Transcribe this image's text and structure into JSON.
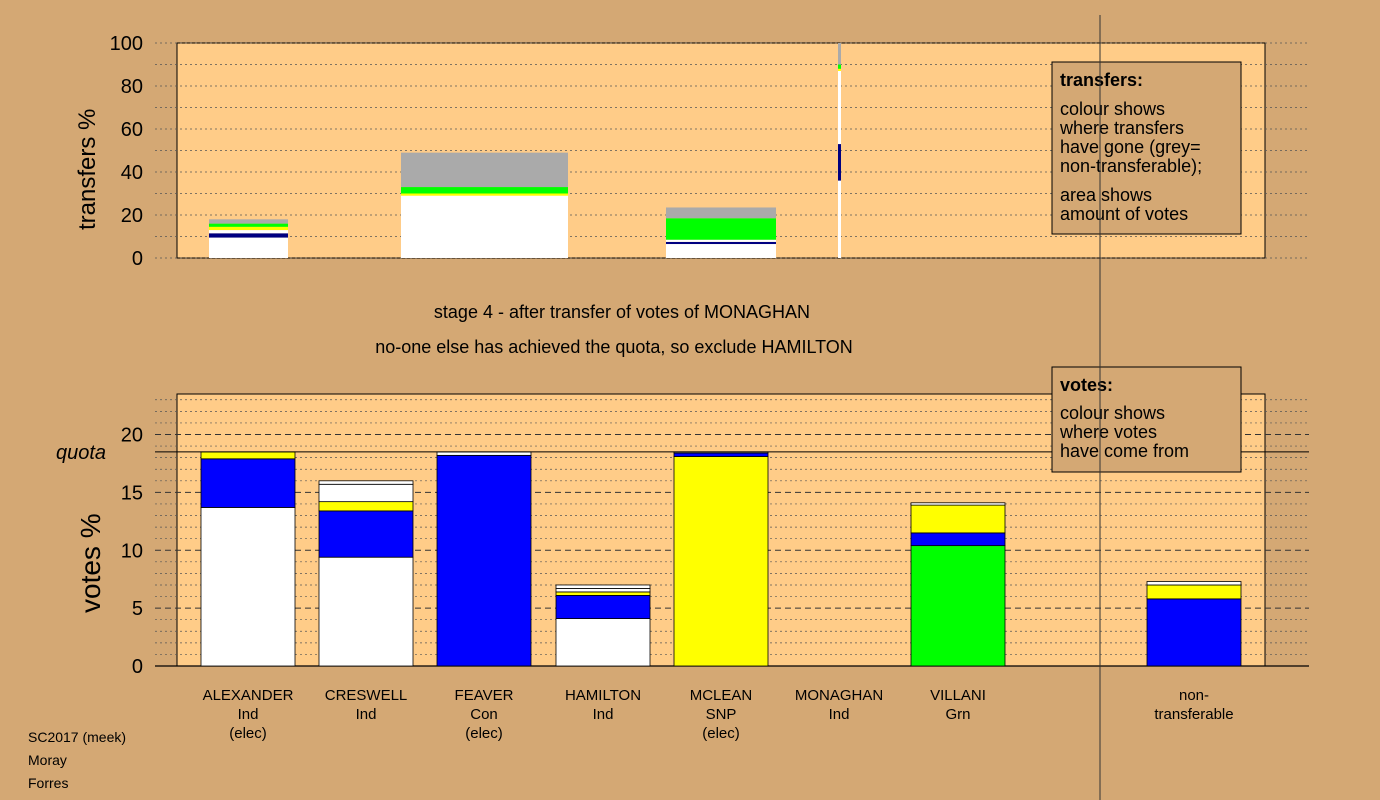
{
  "colors": {
    "background": "#d4a874",
    "plot_bg": "#ffcc88",
    "white": "#ffffff",
    "yellow": "#ffff00",
    "blue": "#0000ff",
    "green": "#00ff00",
    "grey": "#aaaaaa",
    "navy": "#000080"
  },
  "chart_data": [
    {
      "type": "bar",
      "name": "transfers",
      "ylabel": "transfers %",
      "ylim": [
        0,
        100
      ],
      "yticks": [
        0,
        20,
        40,
        60,
        80,
        100
      ],
      "stacked": true,
      "note": "stacked transfer shares per candidate; thin column at MONAGHAN shows 100% of transferred votes",
      "candidates": [
        "ALEXANDER",
        "CRESWELL",
        "FEAVER",
        "MONAGHAN"
      ],
      "stacks": [
        {
          "candidate": "ALEXANDER",
          "segments": [
            {
              "color": "white",
              "value": 9.5
            },
            {
              "color": "navy",
              "value": 2
            },
            {
              "color": "white",
              "value": 1.5
            },
            {
              "color": "yellow",
              "value": 1.5
            },
            {
              "color": "green",
              "value": 1.5
            },
            {
              "color": "grey",
              "value": 2
            }
          ]
        },
        {
          "candidate": "CRESWELL",
          "segments": [
            {
              "color": "white",
              "value": 29
            },
            {
              "color": "yellow",
              "value": 1
            },
            {
              "color": "green",
              "value": 3
            },
            {
              "color": "grey",
              "value": 16
            }
          ]
        },
        {
          "candidate": "FEAVER",
          "segments": [
            {
              "color": "white",
              "value": 6.5
            },
            {
              "color": "navy",
              "value": 1
            },
            {
              "color": "white",
              "value": 1
            },
            {
              "color": "green",
              "value": 10
            },
            {
              "color": "grey",
              "value": 5
            }
          ]
        },
        {
          "candidate": "MONAGHAN",
          "thin": true,
          "segments": [
            {
              "color": "white",
              "value": 36
            },
            {
              "color": "navy",
              "value": 17
            },
            {
              "color": "white",
              "value": 34
            },
            {
              "color": "yellow",
              "value": 1
            },
            {
              "color": "green",
              "value": 2
            },
            {
              "color": "grey",
              "value": 10
            }
          ]
        }
      ]
    },
    {
      "type": "bar",
      "name": "votes",
      "ylabel": "votes %",
      "ylim": [
        0,
        23.5
      ],
      "yticks": [
        0,
        5,
        10,
        15,
        20
      ],
      "quota": 18.5,
      "quota_label": "quota",
      "stacked": true,
      "categories": [
        {
          "lines": [
            "ALEXANDER",
            "Ind",
            "(elec)"
          ]
        },
        {
          "lines": [
            "CRESWELL",
            "Ind"
          ]
        },
        {
          "lines": [
            "FEAVER",
            "Con",
            "(elec)"
          ]
        },
        {
          "lines": [
            "HAMILTON",
            "Ind"
          ]
        },
        {
          "lines": [
            "MCLEAN",
            "SNP",
            "(elec)"
          ]
        },
        {
          "lines": [
            "MONAGHAN",
            "Ind"
          ]
        },
        {
          "lines": [
            "VILLANI",
            "Grn"
          ]
        },
        {
          "lines": [
            "non-",
            "transferable"
          ]
        }
      ],
      "stacks": [
        {
          "candidate": "ALEXANDER",
          "segments": [
            {
              "color": "white",
              "value": 13.7
            },
            {
              "color": "blue",
              "value": 4.2
            },
            {
              "color": "yellow",
              "value": 0.6
            }
          ]
        },
        {
          "candidate": "CRESWELL",
          "segments": [
            {
              "color": "white",
              "value": 9.4
            },
            {
              "color": "blue",
              "value": 4.0
            },
            {
              "color": "yellow",
              "value": 0.8
            },
            {
              "color": "white",
              "value": 1.5
            },
            {
              "color": "white",
              "value": 0.3
            }
          ]
        },
        {
          "candidate": "FEAVER",
          "segments": [
            {
              "color": "blue",
              "value": 18.2
            },
            {
              "color": "white",
              "value": 0.3
            }
          ]
        },
        {
          "candidate": "HAMILTON",
          "segments": [
            {
              "color": "white",
              "value": 4.1
            },
            {
              "color": "blue",
              "value": 2.0
            },
            {
              "color": "yellow",
              "value": 0.3
            },
            {
              "color": "white",
              "value": 0.3
            },
            {
              "color": "white",
              "value": 0.3
            }
          ]
        },
        {
          "candidate": "MCLEAN",
          "segments": [
            {
              "color": "yellow",
              "value": 18.1
            },
            {
              "color": "blue",
              "value": 0.3
            },
            {
              "color": "white",
              "value": 0.1
            }
          ]
        },
        {
          "candidate": "MONAGHAN",
          "segments": []
        },
        {
          "candidate": "VILLANI",
          "segments": [
            {
              "color": "green",
              "value": 10.4
            },
            {
              "color": "blue",
              "value": 1.1
            },
            {
              "color": "yellow",
              "value": 2.4
            },
            {
              "color": "white",
              "value": 0.2
            }
          ]
        },
        {
          "candidate": "non-transferable",
          "segments": [
            {
              "color": "blue",
              "value": 5.8
            },
            {
              "color": "yellow",
              "value": 1.2
            },
            {
              "color": "white",
              "value": 0.3
            }
          ]
        }
      ]
    }
  ],
  "legend_transfers": {
    "title": "transfers:",
    "line1": "colour shows",
    "line2": "where transfers",
    "line3": "have gone (grey=",
    "line4": "non-transferable);",
    "line5": "area shows",
    "line6": "amount of votes"
  },
  "legend_votes": {
    "title": "votes:",
    "line1": "colour shows",
    "line2": "where votes",
    "line3": "have come from"
  },
  "stage": {
    "line1": "stage 4 - after transfer of votes of MONAGHAN",
    "line2": "no-one else has achieved the quota, so exclude HAMILTON"
  },
  "footer": {
    "line1": "SC2017 (meek)",
    "line2": "Moray",
    "line3": "Forres"
  }
}
